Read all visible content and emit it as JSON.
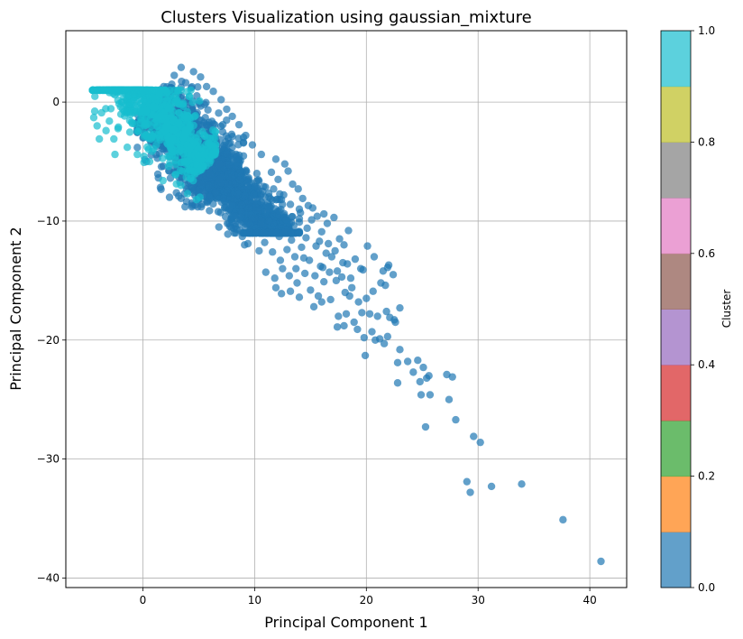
{
  "chart_data": {
    "type": "scatter",
    "title": "Clusters Visualization using gaussian_mixture",
    "xlabel": "Principal Component 1",
    "ylabel": "Principal Component 2",
    "xlim": [
      -6.9,
      43.3
    ],
    "ylim": [
      -40.8,
      6.0
    ],
    "xticks": [
      0,
      10,
      20,
      30,
      40
    ],
    "yticks": [
      0,
      -10,
      -20,
      -30,
      -40
    ],
    "grid": true,
    "colorbar": {
      "label": "Cluster",
      "range": [
        0,
        1
      ],
      "ticks": [
        "0.0",
        "0.2",
        "0.4",
        "0.6",
        "0.8",
        "1.0"
      ],
      "colors": [
        "#1f77b4",
        "#ff7f0e",
        "#2ca02c",
        "#d62728",
        "#9467bd",
        "#8c564b",
        "#e377c2",
        "#7f7f7f",
        "#bcbd22",
        "#17becf"
      ]
    },
    "series": [
      {
        "cluster": 0,
        "color": "#1f77b4",
        "dense_regions": [
          {
            "x": [
              -0.5,
              9.0
            ],
            "y": [
              -8.8,
              3.5
            ],
            "along": [
              0.5,
              7.5
            ],
            "spread": 2.6
          },
          {
            "x": [
              5.0,
              14.0
            ],
            "y": [
              -11.0,
              -3.0
            ],
            "along": [
              6.0,
              13.0
            ],
            "spread": 1.8
          }
        ],
        "points": [
          [
            10.2,
            -6.0
          ],
          [
            10.8,
            -7.1
          ],
          [
            11.5,
            -5.9
          ],
          [
            12.1,
            -6.5
          ],
          [
            12.6,
            -7.8
          ],
          [
            13.0,
            -5.8
          ],
          [
            13.4,
            -6.9
          ],
          [
            13.9,
            -7.3
          ],
          [
            14.3,
            -8.1
          ],
          [
            14.8,
            -8.7
          ],
          [
            11.2,
            -8.8
          ],
          [
            12.0,
            -9.4
          ],
          [
            12.8,
            -9.9
          ],
          [
            13.5,
            -10.4
          ],
          [
            14.1,
            -9.3
          ],
          [
            14.7,
            -10.6
          ],
          [
            15.2,
            -8.9
          ],
          [
            15.6,
            -9.6
          ],
          [
            16.0,
            -10.9
          ],
          [
            16.5,
            -10.2
          ],
          [
            17.1,
            -9.7
          ],
          [
            17.6,
            -11.5
          ],
          [
            18.0,
            -12.0
          ],
          [
            18.4,
            -10.8
          ],
          [
            9.6,
            -10.3
          ],
          [
            10.2,
            -11.0
          ],
          [
            10.9,
            -11.8
          ],
          [
            11.6,
            -12.6
          ],
          [
            12.2,
            -11.3
          ],
          [
            12.9,
            -12.4
          ],
          [
            13.6,
            -13.0
          ],
          [
            14.2,
            -12.2
          ],
          [
            14.9,
            -13.3
          ],
          [
            15.5,
            -12.1
          ],
          [
            15.9,
            -13.8
          ],
          [
            16.4,
            -12.7
          ],
          [
            16.9,
            -13.0
          ],
          [
            17.4,
            -14.2
          ],
          [
            17.9,
            -13.5
          ],
          [
            18.6,
            -14.8
          ],
          [
            19.0,
            -13.2
          ],
          [
            19.5,
            -14.0
          ],
          [
            20.1,
            -12.1
          ],
          [
            8.9,
            -11.3
          ],
          [
            9.4,
            -11.9
          ],
          [
            11.0,
            -14.3
          ],
          [
            11.8,
            -14.8
          ],
          [
            12.5,
            -14.0
          ],
          [
            13.1,
            -14.6
          ],
          [
            13.8,
            -15.2
          ],
          [
            14.5,
            -14.4
          ],
          [
            15.0,
            -15.8
          ],
          [
            15.7,
            -16.3
          ],
          [
            16.2,
            -15.1
          ],
          [
            16.8,
            -16.6
          ],
          [
            17.3,
            -15.0
          ],
          [
            18.1,
            -16.0
          ],
          [
            18.7,
            -15.6
          ],
          [
            19.3,
            -16.8
          ],
          [
            20.0,
            -16.5
          ],
          [
            20.6,
            -15.9
          ],
          [
            21.3,
            -15.2
          ],
          [
            21.7,
            -15.4
          ],
          [
            22.4,
            -14.5
          ],
          [
            22.0,
            -13.7
          ],
          [
            21.5,
            -14.2
          ],
          [
            12.4,
            -16.1
          ],
          [
            13.2,
            -15.9
          ],
          [
            14.0,
            -16.4
          ],
          [
            15.3,
            -17.2
          ],
          [
            16.0,
            -16.8
          ],
          [
            17.5,
            -18.0
          ],
          [
            18.2,
            -17.8
          ],
          [
            18.9,
            -18.5
          ],
          [
            19.6,
            -17.7
          ],
          [
            20.3,
            -17.8
          ],
          [
            21.0,
            -18.0
          ],
          [
            21.8,
            -17.6
          ],
          [
            22.5,
            -18.3
          ],
          [
            23.0,
            -17.3
          ],
          [
            19.2,
            -19.1
          ],
          [
            19.8,
            -19.8
          ],
          [
            20.5,
            -19.3
          ],
          [
            21.2,
            -19.9
          ],
          [
            21.9,
            -19.7
          ],
          [
            22.6,
            -18.5
          ],
          [
            17.4,
            -18.9
          ],
          [
            18.0,
            -18.8
          ],
          [
            20.8,
            -20.0
          ],
          [
            21.6,
            -20.3
          ],
          [
            19.9,
            -21.3
          ],
          [
            22.1,
            -18.1
          ],
          [
            22.8,
            -21.9
          ],
          [
            23.0,
            -20.8
          ],
          [
            23.7,
            -21.8
          ],
          [
            24.2,
            -22.7
          ],
          [
            24.6,
            -21.7
          ],
          [
            25.1,
            -22.3
          ],
          [
            24.8,
            -23.5
          ],
          [
            25.4,
            -23.2
          ],
          [
            22.8,
            -23.6
          ],
          [
            25.6,
            -23.0
          ],
          [
            24.9,
            -24.6
          ],
          [
            25.7,
            -24.6
          ],
          [
            27.2,
            -22.9
          ],
          [
            27.7,
            -23.1
          ],
          [
            27.4,
            -25.0
          ],
          [
            28.0,
            -26.7
          ],
          [
            25.3,
            -27.3
          ],
          [
            29.6,
            -28.1
          ],
          [
            30.2,
            -28.6
          ],
          [
            29.0,
            -31.9
          ],
          [
            29.3,
            -32.8
          ],
          [
            31.2,
            -32.3
          ],
          [
            33.9,
            -32.1
          ],
          [
            37.6,
            -35.1
          ],
          [
            41.0,
            -38.6
          ],
          [
            9.7,
            -9.5
          ],
          [
            10.5,
            -9.1
          ],
          [
            11.3,
            -10.0
          ],
          [
            8.4,
            -10.7
          ],
          [
            7.7,
            -10.2
          ],
          [
            9.1,
            -12.0
          ],
          [
            10.4,
            -12.5
          ],
          [
            12.3,
            -13.3
          ],
          [
            13.3,
            -11.6
          ],
          [
            14.6,
            -11.4
          ],
          [
            15.8,
            -11.7
          ],
          [
            16.7,
            -14.3
          ],
          [
            17.8,
            -14.7
          ],
          [
            18.3,
            -13.6
          ],
          [
            19.7,
            -14.1
          ],
          [
            20.7,
            -13.0
          ],
          [
            21.9,
            -13.9
          ],
          [
            14.4,
            -13.1
          ],
          [
            13.7,
            -14.0
          ],
          [
            11.9,
            -15.6
          ],
          [
            15.4,
            -14.6
          ],
          [
            16.1,
            -13.9
          ],
          [
            18.5,
            -16.3
          ],
          [
            9.9,
            -7.8
          ],
          [
            10.6,
            -8.4
          ],
          [
            11.7,
            -7.3
          ],
          [
            12.4,
            -8.2
          ],
          [
            13.2,
            -8.6
          ],
          [
            14.0,
            -9.0
          ],
          [
            15.1,
            -9.9
          ],
          [
            16.2,
            -9.4
          ],
          [
            6.5,
            -7.6
          ],
          [
            7.2,
            -8.1
          ],
          [
            8.0,
            -8.7
          ],
          [
            8.8,
            -9.2
          ],
          [
            12.7,
            -5.2
          ],
          [
            11.9,
            -4.8
          ],
          [
            10.6,
            -4.4
          ],
          [
            9.8,
            -3.6
          ],
          [
            9.2,
            -2.8
          ],
          [
            8.6,
            -1.9
          ],
          [
            8.0,
            -1.2
          ],
          [
            7.5,
            -0.6
          ],
          [
            7.0,
            0.2
          ],
          [
            6.3,
            0.9
          ],
          [
            5.7,
            1.3
          ],
          [
            4.4,
            -7.6
          ],
          [
            5.0,
            -7.7
          ],
          [
            3.8,
            -7.0
          ],
          [
            16.6,
            -11.9
          ],
          [
            17.2,
            -12.5
          ],
          [
            6.8,
            -10.5
          ],
          [
            7.6,
            -11.1
          ]
        ]
      },
      {
        "cluster": 1,
        "color": "#17becf",
        "dense_regions": [
          {
            "x": [
              -4.5,
              6.5
            ],
            "y": [
              -8.5,
              1.0
            ],
            "along": [
              -3.8,
              5.8
            ],
            "spread": 2.0
          }
        ],
        "points": [
          [
            -4.4,
            -1.3
          ],
          [
            -4.1,
            -2.0
          ],
          [
            -3.7,
            -0.9
          ],
          [
            -3.3,
            -2.4
          ],
          [
            -3.0,
            -1.6
          ],
          [
            -2.6,
            -3.1
          ],
          [
            -2.2,
            -2.1
          ],
          [
            -1.8,
            -0.6
          ],
          [
            -1.4,
            -3.8
          ],
          [
            -1.0,
            -1.7
          ],
          [
            -0.5,
            -4.4
          ],
          [
            0.1,
            -2.9
          ],
          [
            0.6,
            -5.0
          ],
          [
            1.2,
            -3.6
          ],
          [
            1.8,
            -6.6
          ],
          [
            2.3,
            -5.4
          ],
          [
            2.9,
            -6.1
          ],
          [
            3.4,
            -7.0
          ],
          [
            4.0,
            -7.7
          ],
          [
            4.8,
            -8.2
          ],
          [
            5.1,
            -8.0
          ],
          [
            -3.9,
            -3.1
          ],
          [
            -2.5,
            -4.4
          ],
          [
            0.9,
            0.4
          ],
          [
            -0.8,
            0.3
          ],
          [
            -2.0,
            -0.4
          ],
          [
            1.6,
            -1.2
          ],
          [
            3.7,
            -5.0
          ],
          [
            4.5,
            -6.6
          ],
          [
            2.6,
            -4.2
          ]
        ]
      }
    ]
  }
}
